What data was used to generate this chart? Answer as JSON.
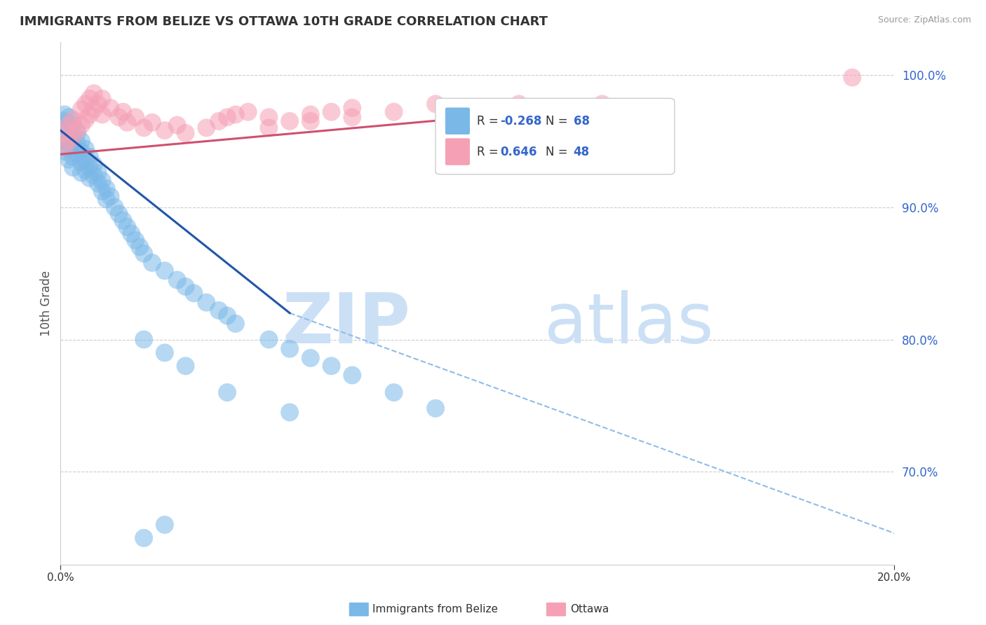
{
  "title": "IMMIGRANTS FROM BELIZE VS OTTAWA 10TH GRADE CORRELATION CHART",
  "source": "Source: ZipAtlas.com",
  "ylabel": "10th Grade",
  "y_tick_values": [
    0.7,
    0.8,
    0.9,
    1.0
  ],
  "y_tick_labels": [
    "70.0%",
    "80.0%",
    "90.0%",
    "100.0%"
  ],
  "xlim": [
    0.0,
    0.2
  ],
  "ylim": [
    0.63,
    1.025
  ],
  "blue_color": "#7ab8e8",
  "pink_color": "#f5a0b5",
  "blue_line_color": "#2255aa",
  "pink_line_color": "#d05070",
  "dashed_color": "#90bce8",
  "blue_line_x": [
    0.0,
    0.055
  ],
  "blue_line_y": [
    0.958,
    0.82
  ],
  "pink_line_x": [
    0.0,
    0.135
  ],
  "pink_line_y": [
    0.94,
    0.978
  ],
  "dashed_line_x": [
    0.055,
    0.205
  ],
  "dashed_line_y": [
    0.82,
    0.648
  ],
  "legend_r1_val": "-0.268",
  "legend_n1_val": "68",
  "legend_r2_val": "0.646",
  "legend_n2_val": "48",
  "watermark_zip": "ZIP",
  "watermark_atlas": "atlas",
  "background_color": "#ffffff",
  "grid_color": "#cccccc",
  "blue_x": [
    0.001,
    0.001,
    0.001,
    0.001,
    0.001,
    0.002,
    0.002,
    0.002,
    0.002,
    0.002,
    0.003,
    0.003,
    0.003,
    0.003,
    0.003,
    0.004,
    0.004,
    0.004,
    0.005,
    0.005,
    0.005,
    0.005,
    0.006,
    0.006,
    0.006,
    0.007,
    0.007,
    0.007,
    0.008,
    0.008,
    0.009,
    0.009,
    0.01,
    0.01,
    0.011,
    0.011,
    0.012,
    0.013,
    0.014,
    0.015,
    0.016,
    0.017,
    0.018,
    0.019,
    0.02,
    0.022,
    0.025,
    0.028,
    0.03,
    0.032,
    0.035,
    0.038,
    0.04,
    0.042,
    0.05,
    0.055,
    0.06,
    0.065,
    0.07,
    0.08,
    0.09,
    0.02,
    0.025,
    0.03,
    0.04,
    0.055,
    0.02,
    0.025
  ],
  "blue_y": [
    0.97,
    0.965,
    0.958,
    0.95,
    0.942,
    0.968,
    0.96,
    0.952,
    0.944,
    0.936,
    0.962,
    0.954,
    0.946,
    0.938,
    0.93,
    0.956,
    0.948,
    0.94,
    0.95,
    0.942,
    0.934,
    0.926,
    0.944,
    0.936,
    0.928,
    0.938,
    0.93,
    0.922,
    0.932,
    0.924,
    0.926,
    0.918,
    0.92,
    0.912,
    0.914,
    0.906,
    0.908,
    0.9,
    0.895,
    0.89,
    0.885,
    0.88,
    0.875,
    0.87,
    0.865,
    0.858,
    0.852,
    0.845,
    0.84,
    0.835,
    0.828,
    0.822,
    0.818,
    0.812,
    0.8,
    0.793,
    0.786,
    0.78,
    0.773,
    0.76,
    0.748,
    0.8,
    0.79,
    0.78,
    0.76,
    0.745,
    0.65,
    0.66
  ],
  "pink_x": [
    0.001,
    0.001,
    0.002,
    0.002,
    0.003,
    0.003,
    0.004,
    0.005,
    0.005,
    0.006,
    0.006,
    0.007,
    0.007,
    0.008,
    0.008,
    0.009,
    0.01,
    0.01,
    0.012,
    0.014,
    0.015,
    0.016,
    0.018,
    0.02,
    0.022,
    0.025,
    0.028,
    0.03,
    0.035,
    0.038,
    0.04,
    0.042,
    0.045,
    0.05,
    0.055,
    0.06,
    0.065,
    0.07,
    0.08,
    0.09,
    0.1,
    0.11,
    0.12,
    0.13,
    0.05,
    0.06,
    0.07,
    0.19
  ],
  "pink_y": [
    0.946,
    0.958,
    0.95,
    0.962,
    0.954,
    0.966,
    0.958,
    0.962,
    0.974,
    0.966,
    0.978,
    0.97,
    0.982,
    0.974,
    0.986,
    0.978,
    0.97,
    0.982,
    0.975,
    0.968,
    0.972,
    0.964,
    0.968,
    0.96,
    0.964,
    0.958,
    0.962,
    0.956,
    0.96,
    0.965,
    0.968,
    0.97,
    0.972,
    0.968,
    0.965,
    0.97,
    0.972,
    0.975,
    0.972,
    0.978,
    0.975,
    0.978,
    0.975,
    0.978,
    0.96,
    0.965,
    0.968,
    0.998
  ]
}
